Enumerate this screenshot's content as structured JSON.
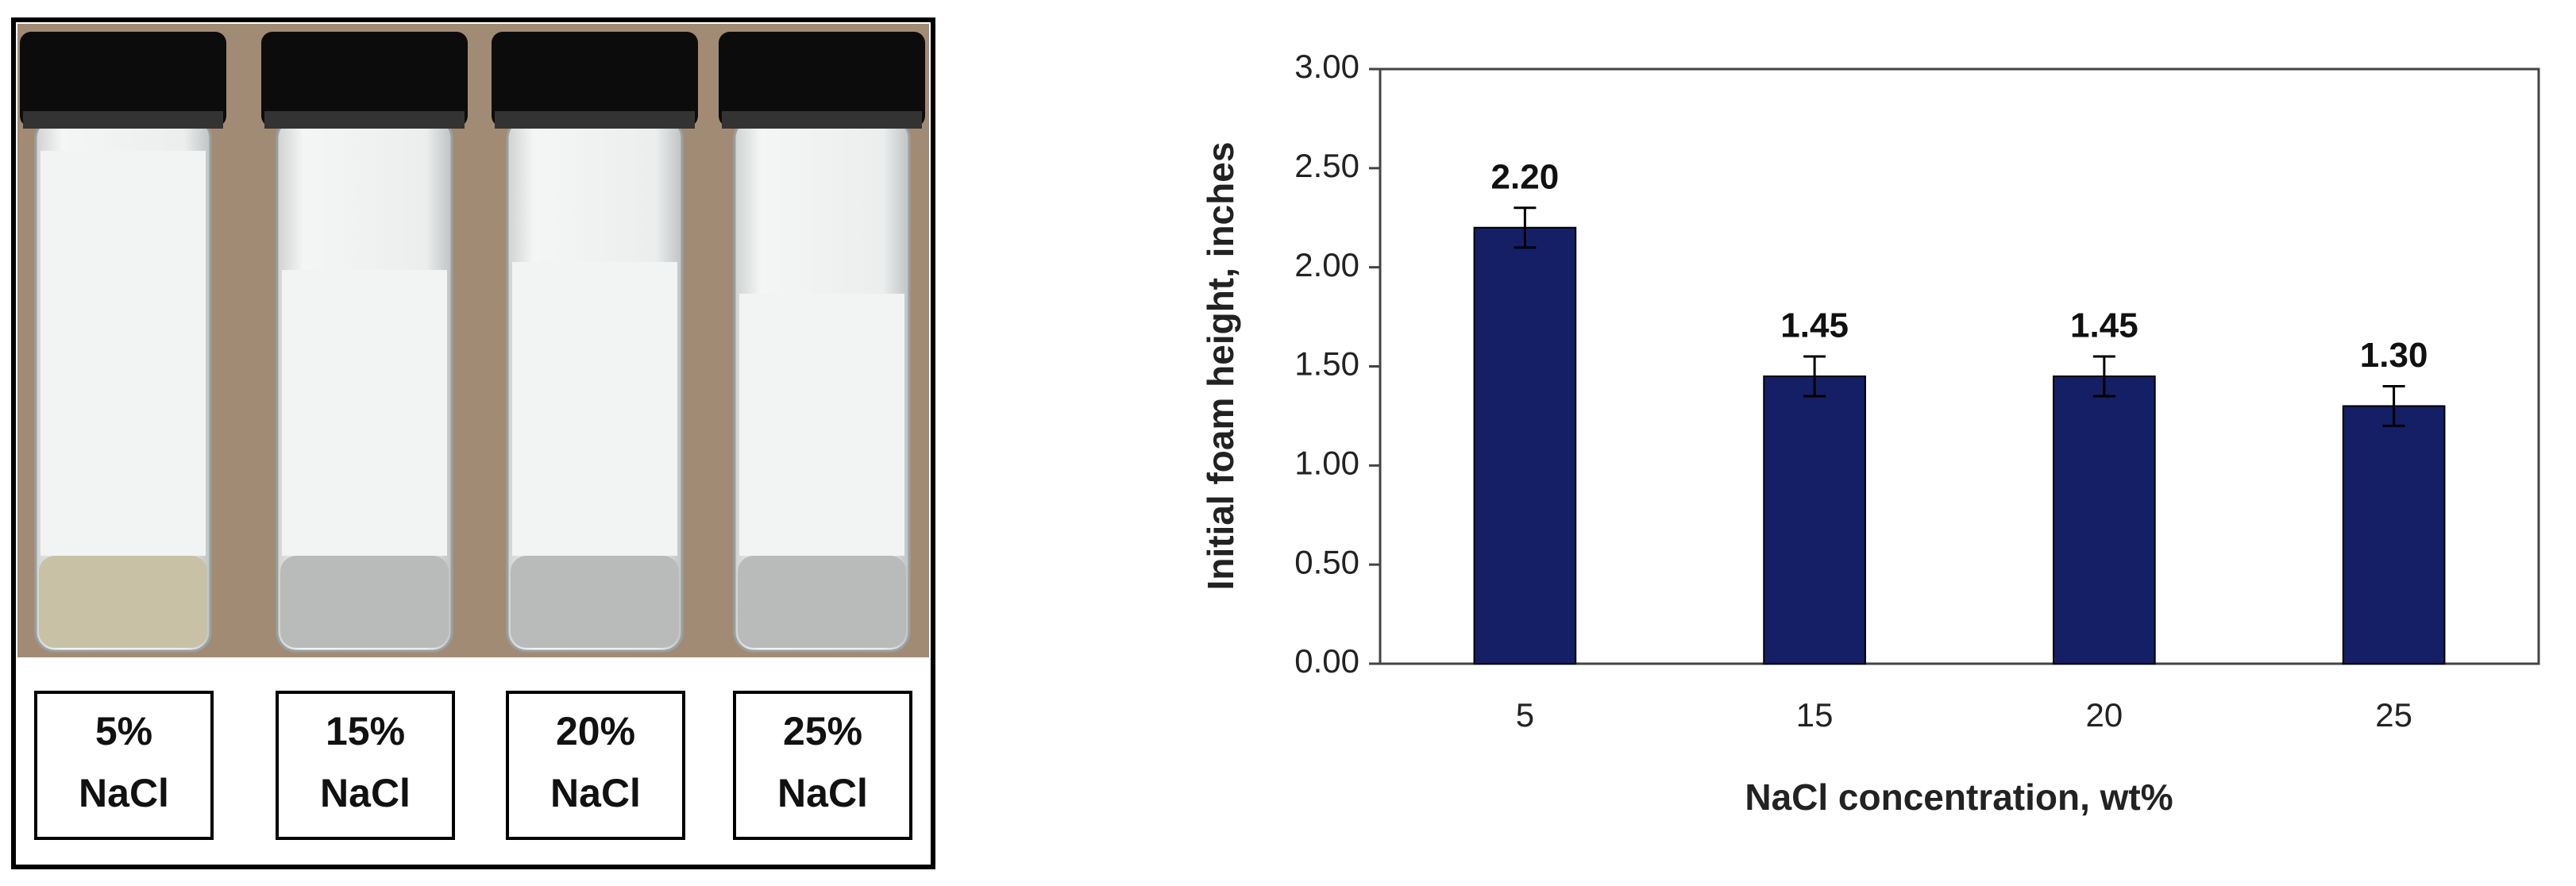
{
  "photo_labels": [
    [
      "5%",
      "NaCl"
    ],
    [
      "15%",
      "NaCl"
    ],
    [
      "20%",
      "NaCl"
    ],
    [
      "25%",
      "NaCl"
    ]
  ],
  "chart_data": {
    "type": "bar",
    "x_label": "NaCl concentration, wt%",
    "y_label": "Initial foam height, inches",
    "categories": [
      "5",
      "15",
      "20",
      "25"
    ],
    "values": [
      2.2,
      1.45,
      1.45,
      1.3
    ],
    "value_labels": [
      "2.20",
      "1.45",
      "1.45",
      "1.30"
    ],
    "errors": [
      0.1,
      0.1,
      0.1,
      0.1
    ],
    "color": "#141f66",
    "ylim": [
      0,
      3
    ],
    "yticks": [
      {
        "value": 0,
        "label": "0.00"
      },
      {
        "value": 0.5,
        "label": "0.50"
      },
      {
        "value": 1,
        "label": "1.00"
      },
      {
        "value": 1.5,
        "label": "1.50"
      },
      {
        "value": 2,
        "label": "2.00"
      },
      {
        "value": 2.5,
        "label": "2.50"
      },
      {
        "value": 3,
        "label": "3.00"
      }
    ]
  }
}
